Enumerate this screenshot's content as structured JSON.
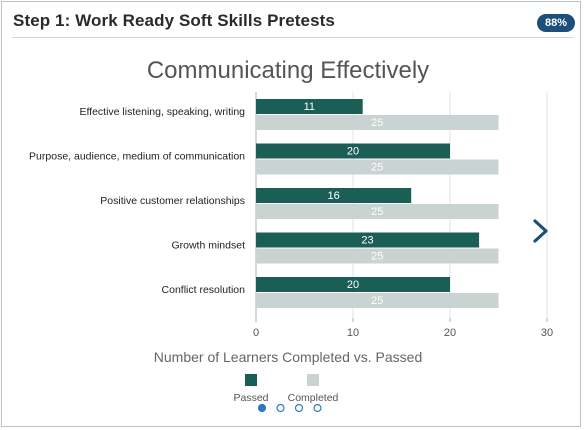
{
  "header": {
    "title": "Step 1: Work Ready Soft Skills Pretests",
    "progress_badge": "88%"
  },
  "colors": {
    "passed": "#1b5e55",
    "completed": "#c8d3d2",
    "badge": "#1c4f7a",
    "arrow": "#1c4f7a",
    "dot_active": "#2f78c4"
  },
  "chart_data": {
    "type": "bar",
    "orientation": "horizontal",
    "title": "Communicating Effectively",
    "xlabel": "Number of Learners Completed vs. Passed",
    "ylabel": "",
    "categories": [
      "Effective listening, speaking, writing",
      "Purpose, audience, medium of communication",
      "Positive customer relationships",
      "Growth mindset",
      "Conflict resolution"
    ],
    "series": [
      {
        "name": "Passed",
        "values": [
          11,
          20,
          16,
          23,
          20
        ]
      },
      {
        "name": "Completed",
        "values": [
          25,
          25,
          25,
          25,
          25
        ]
      }
    ],
    "xlim": [
      0,
      30
    ],
    "xticks": [
      0,
      10,
      20,
      30
    ],
    "grid": true,
    "legend_position": "bottom"
  },
  "carousel": {
    "page_count": 4,
    "active_page": 1
  }
}
